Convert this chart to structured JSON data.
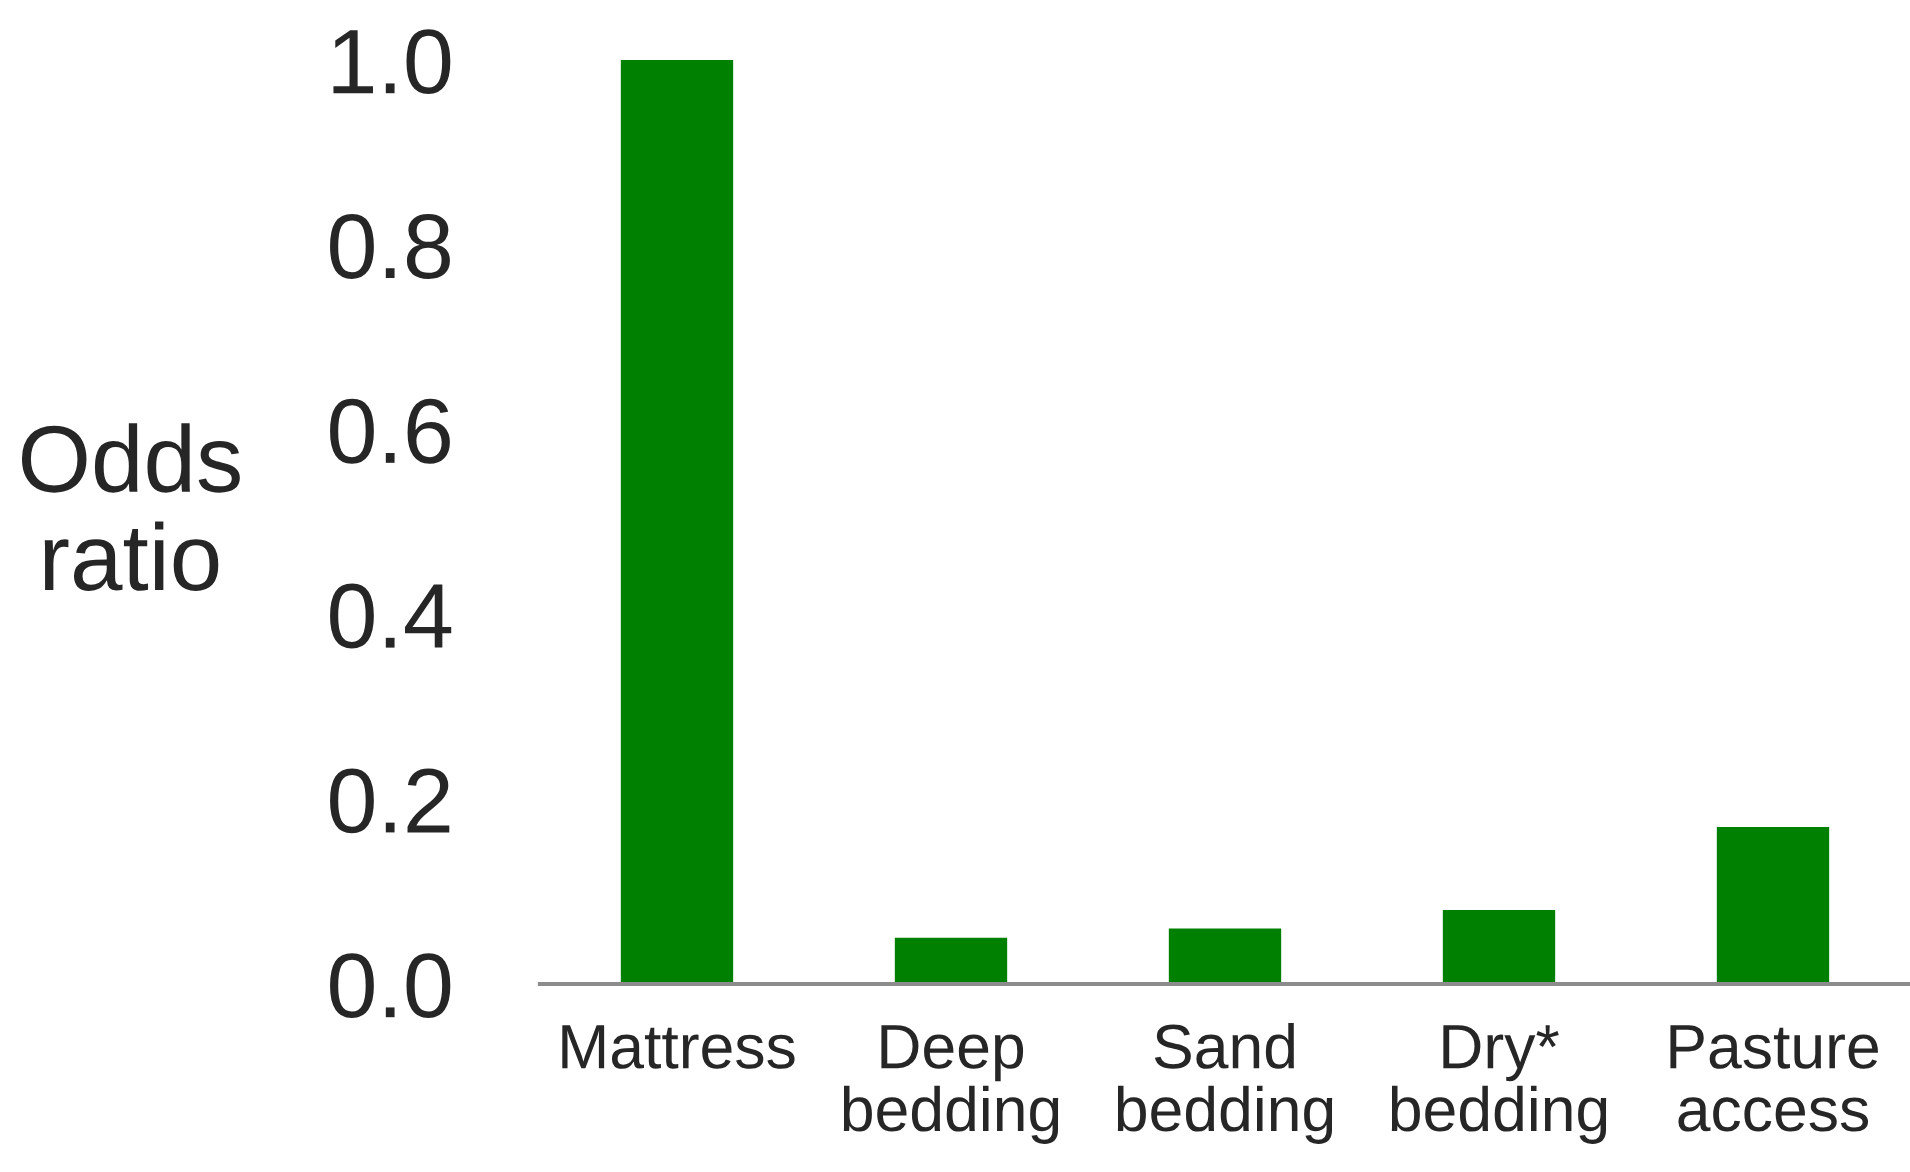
{
  "chart_data": {
    "type": "bar",
    "ylabel": "Odds\nratio",
    "categories": [
      "Mattress",
      "Deep\nbedding",
      "Sand\nbedding",
      "Dry*\nbedding",
      "Pasture\naccess"
    ],
    "values": [
      1.0,
      0.05,
      0.06,
      0.08,
      0.17
    ],
    "color": "#008000",
    "ylim": [
      0,
      1.0
    ],
    "yticks": [
      {
        "value": 0,
        "label": "0.0"
      },
      {
        "value": 0.2,
        "label": "0.2"
      },
      {
        "value": 0.4,
        "label": "0.4"
      },
      {
        "value": 0.6,
        "label": "0.6"
      },
      {
        "value": 0.8,
        "label": "0.8"
      },
      {
        "value": 1.0,
        "label": "1.0"
      }
    ]
  }
}
